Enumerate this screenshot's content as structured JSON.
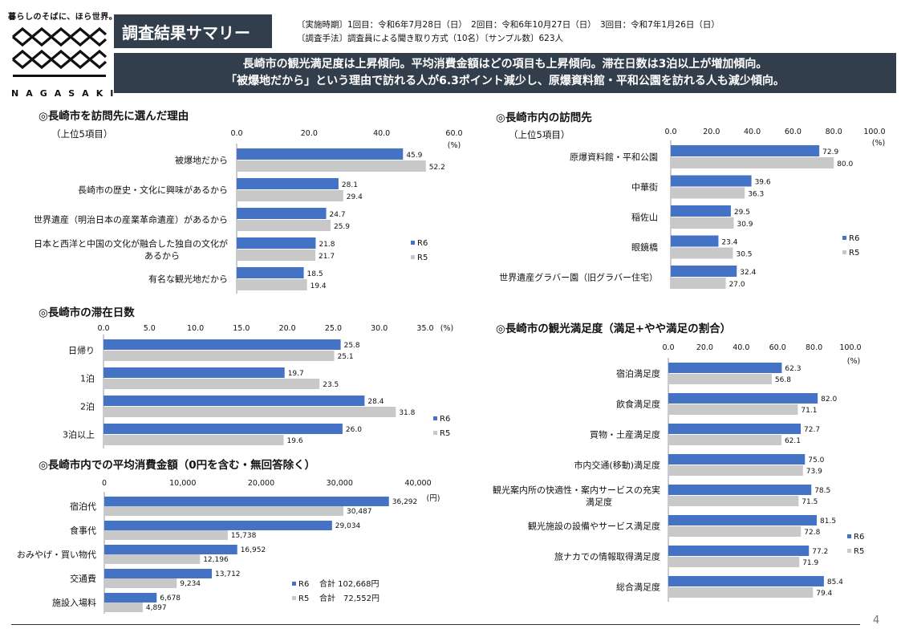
{
  "header": {
    "tagline": "暮らしのそばに、ほら世界。",
    "logo_word": "NAGASAKI",
    "title": "調査結果サマリー",
    "period": "〔実施時期〕1回目：令和6年7月28日（日）　2回目：令和6年10月27日（日）　3回目：令和7年1月26日（日）",
    "method": "〔調査手法〕調査員による聞き取り方式（10名）〔サンプル数〕623人",
    "banner_line1": "長崎市の観光満足度は上昇傾向。平均消費金額はどの項目も上昇傾向。滞在日数は3泊以上が増加傾向。",
    "banner_line2": "「被爆地だから」という理由で訪れる人が6.3ポイント減少し、原爆資料館・平和公園を訪れる人も減少傾向。"
  },
  "colors": {
    "r6": "#4472c4",
    "r5": "#c8c8c8",
    "dark": "#323e4b"
  },
  "page_number": "4",
  "chart_data": [
    {
      "id": "reasons",
      "type": "bar",
      "title": "◎長崎市を訪問先に選んだ理由",
      "subtitle": "（上位5項目）",
      "unit": "(%)",
      "xlim": [
        0,
        60
      ],
      "ticks": [
        "0.0",
        "20.0",
        "40.0",
        "60.0"
      ],
      "categories": [
        "被爆地だから",
        "長崎市の歴史・文化に興味があるから",
        "世界遺産（明治日本の産業革命遺産）があるから",
        "日本と西洋と中国の文化が融合した独自の文化が|あるから",
        "有名な観光地だから"
      ],
      "series": [
        {
          "name": "R6",
          "values": [
            45.9,
            28.1,
            24.7,
            21.8,
            18.5
          ],
          "labels": [
            "45.9",
            "28.1",
            "24.7",
            "21.8",
            "18.5"
          ]
        },
        {
          "name": "R5",
          "values": [
            52.2,
            29.4,
            25.9,
            21.7,
            19.4
          ],
          "labels": [
            "52.2",
            "29.4",
            "25.9",
            "21.7",
            "19.4"
          ]
        }
      ]
    },
    {
      "id": "destinations",
      "type": "bar",
      "title": "◎長崎市内の訪問先",
      "subtitle": "（上位5項目）",
      "unit": "(%)",
      "xlim": [
        0,
        100
      ],
      "ticks": [
        "0.0",
        "20.0",
        "40.0",
        "60.0",
        "80.0",
        "100.0"
      ],
      "categories": [
        "原爆資料館・平和公園",
        "中華街",
        "稲佐山",
        "眼鏡橋",
        "世界遺産グラバー園（旧グラバー住宅）"
      ],
      "series": [
        {
          "name": "R6",
          "values": [
            72.9,
            39.6,
            29.5,
            23.4,
            32.4
          ],
          "labels": [
            "72.9",
            "39.6",
            "29.5",
            "23.4",
            "32.4"
          ]
        },
        {
          "name": "R5",
          "values": [
            80.0,
            36.3,
            30.9,
            30.5,
            27.0
          ],
          "labels": [
            "80.0",
            "36.3",
            "30.9",
            "30.5",
            "27.0"
          ]
        }
      ]
    },
    {
      "id": "stay",
      "type": "bar",
      "title": "◎長崎市の滞在日数",
      "subtitle": "",
      "unit": "(%)",
      "xlim": [
        0,
        35
      ],
      "ticks": [
        "0.0",
        "5.0",
        "10.0",
        "15.0",
        "20.0",
        "25.0",
        "30.0",
        "35.0"
      ],
      "categories": [
        "日帰り",
        "1泊",
        "2泊",
        "3泊以上"
      ],
      "series": [
        {
          "name": "R6",
          "values": [
            25.8,
            19.7,
            28.4,
            26.0
          ],
          "labels": [
            "25.8",
            "19.7",
            "28.4",
            "26.0"
          ]
        },
        {
          "name": "R5",
          "values": [
            25.1,
            23.5,
            31.8,
            19.6
          ],
          "labels": [
            "25.1",
            "23.5",
            "31.8",
            "19.6"
          ]
        }
      ]
    },
    {
      "id": "spend",
      "type": "bar",
      "title": "◎長崎市内での平均消費金額（0円を含む・無回答除く）",
      "subtitle": "",
      "unit": "(円)",
      "xlim": [
        0,
        40000
      ],
      "ticks": [
        "0",
        "10,000",
        "20,000",
        "30,000",
        "40,000"
      ],
      "categories": [
        "宿泊代",
        "食事代",
        "おみやげ・買い物代",
        "交通費",
        "施設入場料"
      ],
      "series": [
        {
          "name": "R6",
          "values": [
            36292,
            29034,
            16952,
            13712,
            6678
          ],
          "labels": [
            "36,292",
            "29,034",
            "16,952",
            "13,712",
            "6,678"
          ],
          "total_label": "合計 102,668円"
        },
        {
          "name": "R5",
          "values": [
            30487,
            15738,
            12196,
            9234,
            4897
          ],
          "labels": [
            "30,487",
            "15,738",
            "12,196",
            "9,234",
            "4,897"
          ],
          "total_label": "合計　72,552円"
        }
      ]
    },
    {
      "id": "satisfaction",
      "type": "bar",
      "title": "◎長崎市の観光満足度（満足+やや満足の割合）",
      "subtitle": "",
      "unit": "(%)",
      "xlim": [
        0,
        100
      ],
      "ticks": [
        "0.0",
        "20.0",
        "40.0",
        "60.0",
        "80.0",
        "100.0"
      ],
      "categories": [
        "宿泊満足度",
        "飲食満足度",
        "買物・土産満足度",
        "市内交通(移動)満足度",
        "観光案内所の快適性・案内サービスの充実|満足度",
        "観光施設の設備やサービス満足度",
        "旅ナカでの情報取得満足度",
        "総合満足度"
      ],
      "series": [
        {
          "name": "R6",
          "values": [
            62.3,
            82.0,
            72.7,
            75.0,
            78.5,
            81.5,
            77.2,
            85.4
          ],
          "labels": [
            "62.3",
            "82.0",
            "72.7",
            "75.0",
            "78.5",
            "81.5",
            "77.2",
            "85.4"
          ]
        },
        {
          "name": "R5",
          "values": [
            56.8,
            71.1,
            62.1,
            73.9,
            71.5,
            72.8,
            71.9,
            79.4
          ],
          "labels": [
            "56.8",
            "71.1",
            "62.1",
            "73.9",
            "71.5",
            "72.8",
            "71.9",
            "79.4"
          ]
        }
      ]
    }
  ]
}
